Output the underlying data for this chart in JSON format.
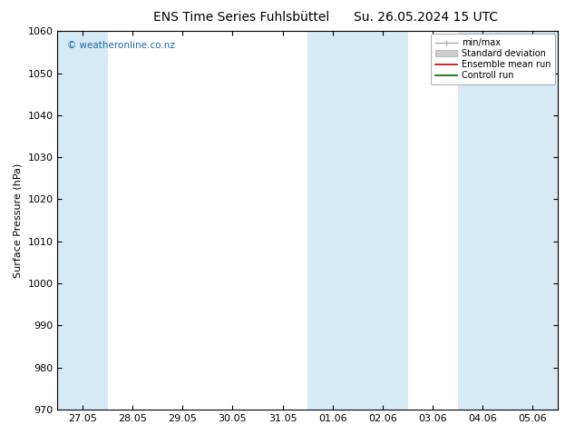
{
  "title_left": "ENS Time Series Fuhlsbüttel",
  "title_right": "Su. 26.05.2024 15 UTC",
  "ylabel": "Surface Pressure (hPa)",
  "watermark": "© weatheronline.co.nz",
  "ylim": [
    970,
    1060
  ],
  "yticks": [
    970,
    980,
    990,
    1000,
    1010,
    1020,
    1030,
    1040,
    1050,
    1060
  ],
  "xtick_labels": [
    "27.05",
    "28.05",
    "29.05",
    "30.05",
    "31.05",
    "01.06",
    "02.06",
    "03.06",
    "04.06",
    "05.06"
  ],
  "shade_color": "#d6eaf5",
  "legend_labels": [
    "min/max",
    "Standard deviation",
    "Ensemble mean run",
    "Controll run"
  ],
  "bg_color": "#ffffff",
  "title_fontsize": 10,
  "axis_fontsize": 8,
  "tick_fontsize": 8
}
